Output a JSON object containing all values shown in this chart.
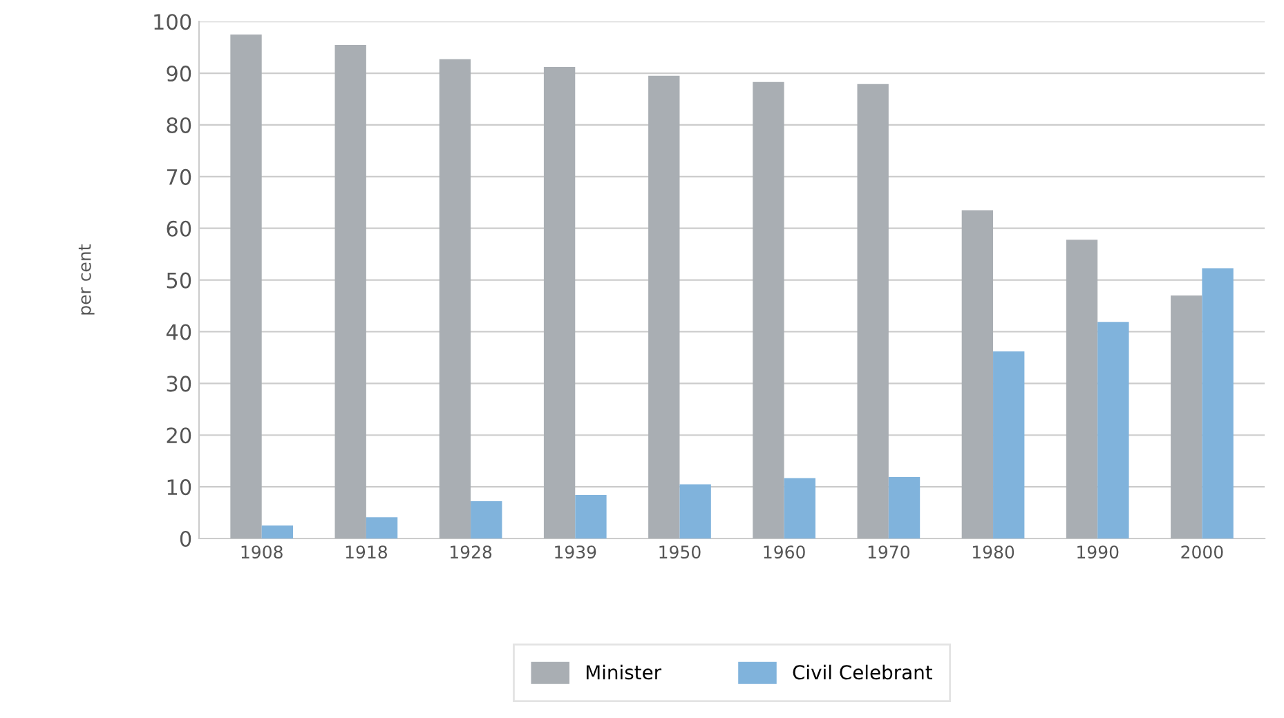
{
  "chart_data": {
    "type": "bar",
    "ylabel": "per cent",
    "categories": [
      "1908",
      "1918",
      "1928",
      "1939",
      "1950",
      "1960",
      "1970",
      "1980",
      "1990",
      "2000"
    ],
    "series": [
      {
        "name": "Minister",
        "color": "#a9aeb3",
        "values": [
          97.5,
          95.5,
          92.7,
          91.2,
          89.5,
          88.3,
          87.9,
          63.5,
          57.8,
          47
        ]
      },
      {
        "name": "Civil Celebrant",
        "color": "#80b3dc",
        "values": [
          2.5,
          4.1,
          7.2,
          8.4,
          10.5,
          11.7,
          11.9,
          36.2,
          41.9,
          52.3
        ]
      }
    ],
    "ylim": [
      0,
      100
    ],
    "yticks": [
      0,
      10,
      20,
      30,
      40,
      50,
      60,
      70,
      80,
      90,
      100
    ],
    "grid": "y",
    "legend": "bottom"
  }
}
